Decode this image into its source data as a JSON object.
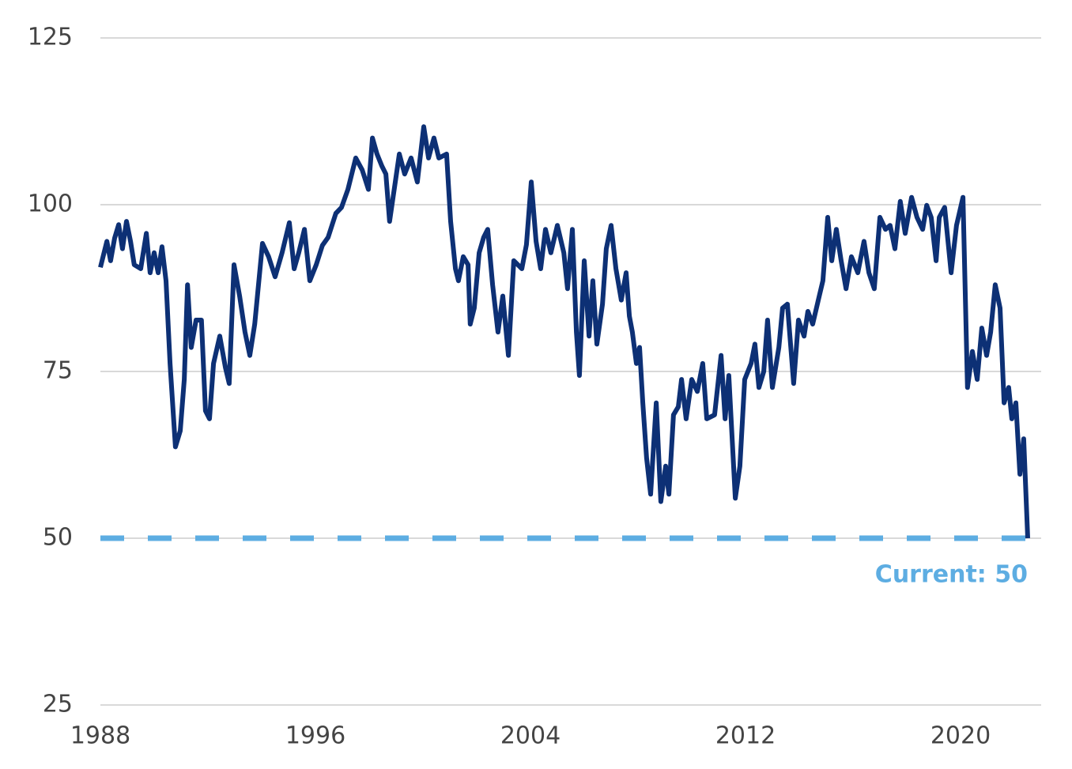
{
  "chart_data": {
    "type": "line",
    "x": [
      1988.0,
      1988.24,
      1988.38,
      1988.53,
      1988.68,
      1988.82,
      1988.97,
      1989.12,
      1989.26,
      1989.5,
      1989.71,
      1989.85,
      1990.0,
      1990.15,
      1990.29,
      1990.44,
      1990.59,
      1990.79,
      1990.97,
      1991.12,
      1991.24,
      1991.38,
      1991.56,
      1991.76,
      1991.91,
      1992.06,
      1992.21,
      1992.44,
      1992.65,
      1992.79,
      1992.97,
      1993.18,
      1993.38,
      1993.56,
      1993.74,
      1994.03,
      1994.26,
      1994.5,
      1994.76,
      1995.03,
      1995.21,
      1995.38,
      1995.59,
      1995.79,
      1996.03,
      1996.26,
      1996.47,
      1996.76,
      1996.97,
      1997.21,
      1997.5,
      1997.74,
      1997.97,
      1998.12,
      1998.29,
      1998.47,
      1998.62,
      1998.76,
      1998.97,
      1999.12,
      1999.32,
      1999.56,
      1999.79,
      2000.03,
      2000.21,
      2000.41,
      2000.59,
      2000.88,
      2001.03,
      2001.21,
      2001.32,
      2001.5,
      2001.68,
      2001.76,
      2001.91,
      2002.09,
      2002.26,
      2002.41,
      2002.59,
      2002.79,
      2002.97,
      2003.18,
      2003.38,
      2003.68,
      2003.85,
      2004.03,
      2004.21,
      2004.38,
      2004.56,
      2004.76,
      2005.0,
      2005.24,
      2005.38,
      2005.56,
      2005.71,
      2005.82,
      2006.0,
      2006.18,
      2006.32,
      2006.47,
      2006.68,
      2006.82,
      2007.0,
      2007.18,
      2007.38,
      2007.56,
      2007.68,
      2007.79,
      2007.94,
      2008.06,
      2008.18,
      2008.32,
      2008.47,
      2008.68,
      2008.85,
      2009.03,
      2009.15,
      2009.32,
      2009.5,
      2009.62,
      2009.79,
      2010.0,
      2010.21,
      2010.41,
      2010.56,
      2010.85,
      2011.09,
      2011.24,
      2011.38,
      2011.62,
      2011.79,
      2011.97,
      2012.21,
      2012.35,
      2012.5,
      2012.68,
      2012.82,
      2013.0,
      2013.24,
      2013.38,
      2013.56,
      2013.79,
      2013.97,
      2014.18,
      2014.32,
      2014.5,
      2014.71,
      2014.88,
      2015.06,
      2015.21,
      2015.38,
      2015.56,
      2015.74,
      2015.94,
      2016.18,
      2016.41,
      2016.59,
      2016.79,
      2017.0,
      2017.21,
      2017.38,
      2017.56,
      2017.76,
      2017.94,
      2018.18,
      2018.38,
      2018.59,
      2018.74,
      2018.91,
      2019.09,
      2019.21,
      2019.41,
      2019.65,
      2019.85,
      2020.09,
      2020.26,
      2020.44,
      2020.62,
      2020.79,
      2020.97,
      2021.12,
      2021.29,
      2021.47,
      2021.62,
      2021.79,
      2021.91,
      2022.06,
      2022.21,
      2022.35,
      2022.5
    ],
    "series": [
      {
        "color": "#0d3075",
        "values": [
          90.6,
          94.5,
          91.6,
          95,
          97,
          93.4,
          97.5,
          94.5,
          91,
          90.4,
          95.7,
          89.8,
          92.8,
          89.8,
          93.7,
          88.6,
          76.2,
          63.7,
          66.1,
          73.8,
          88,
          78.6,
          82.7,
          82.7,
          69.1,
          67.9,
          76.2,
          80.3,
          75.6,
          73.2,
          91,
          86.3,
          80.9,
          77.4,
          82.1,
          94.2,
          92.2,
          89.2,
          92.8,
          97.3,
          90.4,
          92.8,
          96.3,
          88.6,
          91,
          93.9,
          95.1,
          98.7,
          99.6,
          102.3,
          107,
          105.2,
          102.3,
          110,
          107.6,
          105.8,
          104.6,
          97.5,
          103.4,
          107.6,
          104.6,
          107,
          103.4,
          111.7,
          107,
          110,
          107,
          107.6,
          97.5,
          90.4,
          88.6,
          92.2,
          91,
          82.1,
          84.5,
          92.8,
          95.1,
          96.3,
          88,
          80.9,
          86.3,
          77.4,
          91.6,
          90.4,
          94,
          103.4,
          94.5,
          90.4,
          96.3,
          92.8,
          96.9,
          92.8,
          87.4,
          96.3,
          80.9,
          74.4,
          91.6,
          80.3,
          88.6,
          79.1,
          85.1,
          93.4,
          96.9,
          90.4,
          85.7,
          89.8,
          83.3,
          80.9,
          76.2,
          78.6,
          70.3,
          62,
          56.6,
          70.3,
          55.5,
          60.8,
          56.6,
          68.5,
          69.7,
          73.8,
          67.9,
          73.8,
          72,
          76.2,
          67.9,
          68.5,
          77.4,
          67.9,
          74.4,
          56,
          60.8,
          73.8,
          76.2,
          79.1,
          72.6,
          75,
          82.7,
          72.6,
          78.6,
          84.5,
          85.1,
          73.2,
          82.7,
          80.3,
          84,
          82.1,
          85.7,
          88.6,
          98.1,
          91.6,
          96.3,
          91.6,
          87.4,
          92.2,
          89.8,
          94.5,
          89.8,
          87.4,
          98.1,
          96.3,
          96.9,
          93.4,
          100.5,
          95.7,
          101.1,
          98.1,
          96.3,
          99.9,
          98.1,
          91.6,
          98.1,
          99.6,
          89.8,
          96.9,
          101.1,
          72.6,
          78,
          73.8,
          81.5,
          77.4,
          80.9,
          88,
          84.5,
          70.3,
          72.6,
          67.9,
          70.3,
          59.6,
          64.9,
          50
        ]
      }
    ],
    "reference": {
      "value": 50,
      "label": "Current: 50",
      "color": "#5dade2"
    },
    "xlim": [
      1988,
      2023
    ],
    "xticks": [
      1988,
      1996,
      2004,
      2012,
      2020
    ],
    "ylim": [
      25,
      125
    ],
    "yticks": [
      25,
      50,
      75,
      100,
      125
    ],
    "grid": true
  }
}
